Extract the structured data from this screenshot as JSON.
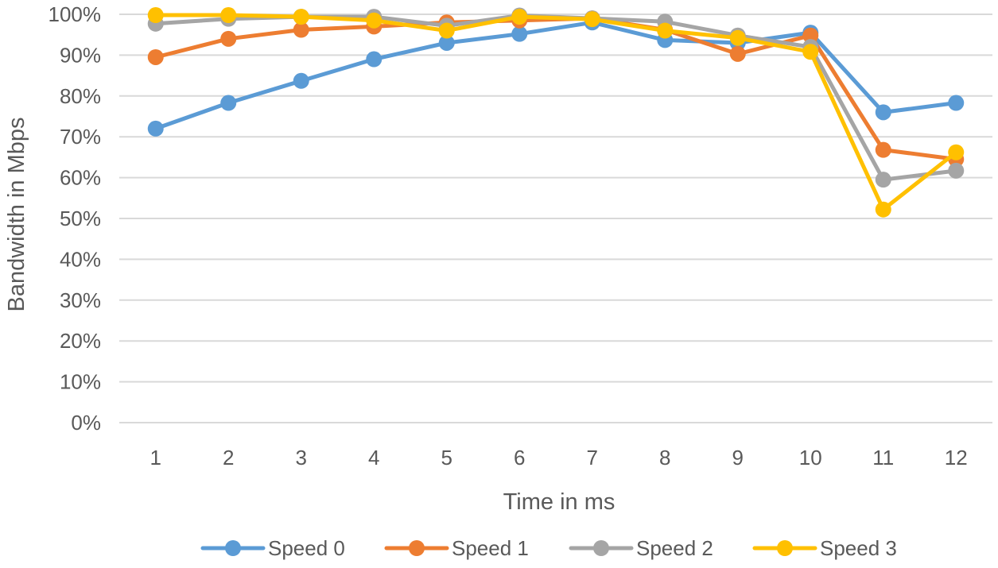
{
  "chart_data": {
    "type": "line",
    "title": "",
    "xlabel": "Time in ms",
    "ylabel": "Bandwidth in Mbps",
    "categories": [
      "1",
      "2",
      "3",
      "4",
      "5",
      "6",
      "7",
      "8",
      "9",
      "10",
      "11",
      "12"
    ],
    "ylim": [
      0,
      100
    ],
    "y_ticks": [
      {
        "value": 0,
        "label": "0%"
      },
      {
        "value": 10,
        "label": "10%"
      },
      {
        "value": 20,
        "label": "20%"
      },
      {
        "value": 30,
        "label": "30%"
      },
      {
        "value": 40,
        "label": "40%"
      },
      {
        "value": 50,
        "label": "50%"
      },
      {
        "value": 60,
        "label": "60%"
      },
      {
        "value": 70,
        "label": "70%"
      },
      {
        "value": 80,
        "label": "80%"
      },
      {
        "value": 90,
        "label": "90%"
      },
      {
        "value": 100,
        "label": "100%"
      }
    ],
    "grid": true,
    "legend_position": "bottom",
    "series": [
      {
        "name": "Speed 0",
        "color": "#5B9BD5",
        "values": [
          72,
          78.3,
          83.7,
          89,
          93,
          95.2,
          98,
          93.7,
          93,
          95.5,
          76,
          78.3
        ]
      },
      {
        "name": "Speed 1",
        "color": "#ED7D31",
        "values": [
          89.5,
          94,
          96.2,
          97,
          98,
          98.5,
          99,
          96.2,
          90.3,
          94.8,
          66.8,
          64.5
        ]
      },
      {
        "name": "Speed 2",
        "color": "#A5A5A5",
        "values": [
          97.7,
          98.9,
          99.4,
          99.4,
          97.2,
          99.7,
          99,
          98.2,
          94.8,
          92,
          59.5,
          61.7
        ]
      },
      {
        "name": "Speed 3",
        "color": "#FFC000",
        "values": [
          99.8,
          99.8,
          99.4,
          98.5,
          96,
          99.4,
          98.8,
          96,
          94.2,
          90.8,
          52.2,
          66.2
        ]
      }
    ]
  }
}
